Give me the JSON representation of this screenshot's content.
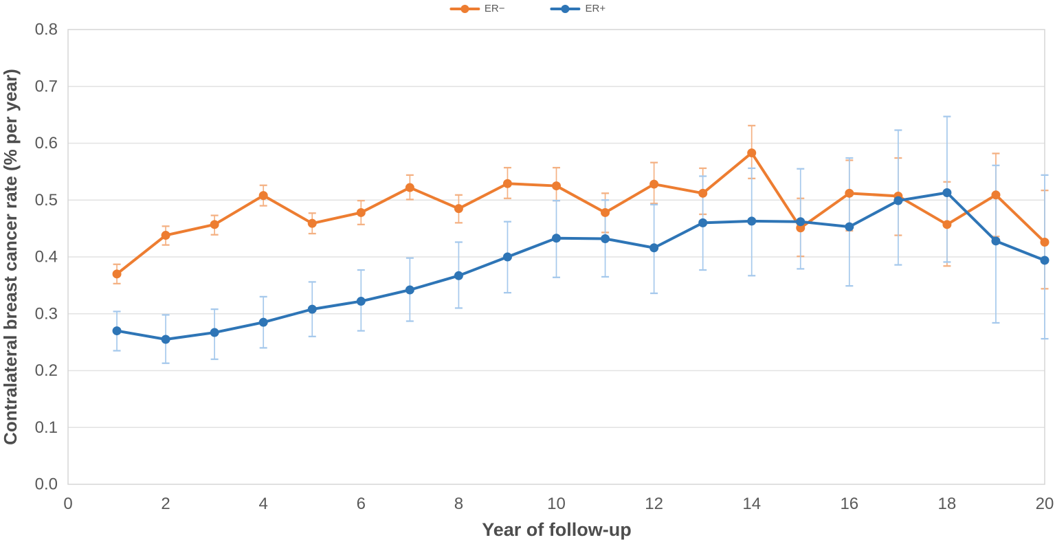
{
  "chart_data": {
    "type": "line",
    "title": "",
    "xlabel": "Year of follow-up",
    "ylabel": "Contralateral breast cancer rate (% per year)",
    "xlim": [
      0,
      20
    ],
    "ylim": [
      0,
      0.8
    ],
    "x_tick_values": [
      0,
      2,
      4,
      6,
      8,
      10,
      12,
      14,
      16,
      18,
      20
    ],
    "x_ticks": [
      "0",
      "2",
      "4",
      "6",
      "8",
      "10",
      "12",
      "14",
      "16",
      "18",
      "20"
    ],
    "y_tick_values": [
      0.0,
      0.1,
      0.2,
      0.3,
      0.4,
      0.5,
      0.6,
      0.7,
      0.8
    ],
    "y_ticks": [
      "0.0",
      "0.1",
      "0.2",
      "0.3",
      "0.4",
      "0.5",
      "0.6",
      "0.7",
      "0.8"
    ],
    "grid": "horizontal",
    "legend_position": "top-center",
    "marker": "circle",
    "error_bars": true,
    "x": [
      1,
      2,
      3,
      4,
      5,
      6,
      7,
      8,
      9,
      10,
      11,
      12,
      13,
      14,
      15,
      16,
      17,
      18,
      19,
      20
    ],
    "series": [
      {
        "name": "ER−",
        "color": "#ED7D31",
        "error_color": "#F4B183",
        "values": [
          0.37,
          0.438,
          0.457,
          0.508,
          0.459,
          0.478,
          0.522,
          0.485,
          0.529,
          0.525,
          0.478,
          0.528,
          0.512,
          0.583,
          0.451,
          0.512,
          0.507,
          0.457,
          0.509,
          0.426
        ],
        "ci_low": [
          0.353,
          0.421,
          0.439,
          0.49,
          0.441,
          0.457,
          0.501,
          0.46,
          0.503,
          0.499,
          0.443,
          0.494,
          0.475,
          0.538,
          0.401,
          0.446,
          0.438,
          0.384,
          0.436,
          0.344
        ],
        "ci_high": [
          0.387,
          0.454,
          0.473,
          0.526,
          0.477,
          0.499,
          0.544,
          0.509,
          0.557,
          0.557,
          0.512,
          0.566,
          0.556,
          0.631,
          0.503,
          0.57,
          0.574,
          0.532,
          0.582,
          0.517
        ]
      },
      {
        "name": "ER+",
        "color": "#2E75B6",
        "error_color": "#A6C9EC",
        "values": [
          0.27,
          0.255,
          0.267,
          0.285,
          0.308,
          0.322,
          0.342,
          0.367,
          0.4,
          0.433,
          0.432,
          0.416,
          0.46,
          0.463,
          0.462,
          0.453,
          0.499,
          0.513,
          0.428,
          0.394
        ],
        "ci_low": [
          0.235,
          0.213,
          0.22,
          0.24,
          0.26,
          0.27,
          0.287,
          0.31,
          0.337,
          0.364,
          0.365,
          0.336,
          0.377,
          0.367,
          0.379,
          0.349,
          0.386,
          0.391,
          0.284,
          0.256
        ],
        "ci_high": [
          0.304,
          0.298,
          0.308,
          0.33,
          0.356,
          0.377,
          0.398,
          0.426,
          0.462,
          0.499,
          0.5,
          0.492,
          0.542,
          0.556,
          0.555,
          0.574,
          0.623,
          0.647,
          0.561,
          0.544
        ]
      }
    ],
    "style": {
      "grid_color": "#E2E2E2",
      "border_color": "#D6D6D6",
      "tick_color": "#595959",
      "axis_title_color": "#4D4D4D"
    }
  },
  "legend": {
    "items": [
      {
        "label": "ER−"
      },
      {
        "label": "ER+"
      }
    ]
  }
}
